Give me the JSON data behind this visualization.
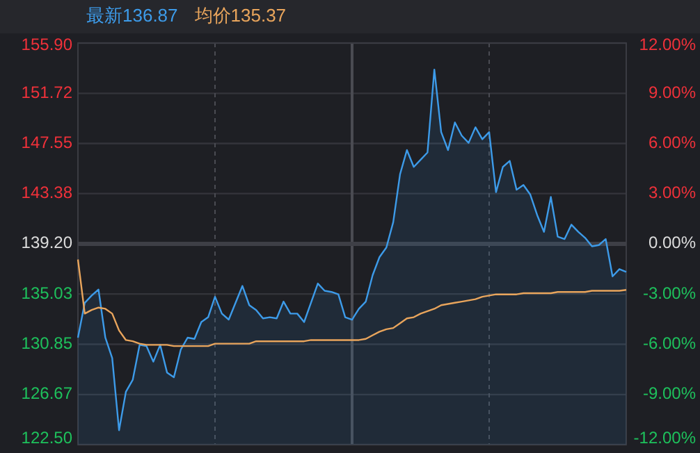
{
  "chart_data": {
    "type": "line",
    "categories": [
      null,
      null,
      null,
      null,
      null,
      null,
      null,
      null,
      null,
      null,
      null,
      null,
      null,
      null,
      null,
      null,
      null,
      null,
      null,
      null,
      null,
      null,
      null,
      null,
      null,
      null,
      null,
      null,
      null,
      null,
      null,
      null,
      null,
      null,
      null,
      null,
      null,
      null,
      null,
      null,
      null,
      null,
      null,
      null,
      null,
      null,
      null,
      null,
      null,
      null,
      null,
      null,
      null,
      null,
      null,
      null,
      null,
      null,
      null,
      null,
      null,
      null,
      null,
      null,
      null,
      null,
      null,
      null,
      null,
      null,
      null,
      null,
      null,
      null,
      null,
      null,
      null,
      null,
      null,
      null,
      null
    ],
    "series": [
      {
        "name": "最新136.87",
        "type": "area",
        "color": "#3d9be9",
        "values": [
          131.4,
          134.3,
          134.9,
          135.4,
          131.4,
          129.7,
          123.7,
          126.9,
          127.9,
          130.8,
          130.7,
          129.4,
          130.8,
          128.5,
          128.1,
          130.4,
          131.4,
          131.3,
          132.7,
          133.1,
          134.8,
          133.4,
          132.9,
          134.3,
          135.7,
          134.1,
          133.7,
          133.0,
          133.1,
          133.0,
          134.4,
          133.4,
          133.4,
          132.7,
          134.3,
          135.9,
          135.3,
          135.2,
          135.0,
          133.1,
          132.9,
          133.8,
          134.4,
          136.6,
          138.1,
          138.9,
          141.0,
          145.0,
          147.0,
          145.6,
          146.2,
          146.8,
          153.7,
          148.5,
          147.0,
          149.3,
          148.2,
          147.6,
          148.9,
          147.9,
          148.5,
          143.5,
          145.6,
          146.1,
          143.7,
          144.1,
          143.3,
          141.6,
          140.2,
          143.1,
          139.8,
          139.6,
          140.8,
          140.2,
          139.7,
          139.0,
          139.1,
          139.6,
          136.5,
          137.1,
          136.87
        ]
      },
      {
        "name": "均价135.37",
        "type": "line",
        "color": "#e9a55c",
        "values": [
          137.9,
          133.4,
          133.7,
          133.9,
          133.8,
          133.4,
          132.0,
          131.2,
          131.1,
          130.9,
          130.8,
          130.8,
          130.8,
          130.8,
          130.7,
          130.7,
          130.7,
          130.7,
          130.7,
          130.7,
          130.9,
          130.9,
          130.9,
          130.9,
          130.9,
          130.9,
          131.1,
          131.1,
          131.1,
          131.1,
          131.1,
          131.1,
          131.1,
          131.1,
          131.2,
          131.2,
          131.2,
          131.2,
          131.2,
          131.2,
          131.2,
          131.2,
          131.3,
          131.6,
          131.9,
          132.1,
          132.2,
          132.6,
          133.0,
          133.1,
          133.4,
          133.6,
          133.8,
          134.1,
          134.2,
          134.3,
          134.4,
          134.5,
          134.6,
          134.8,
          134.9,
          135.0,
          135.0,
          135.0,
          135.0,
          135.1,
          135.1,
          135.1,
          135.1,
          135.1,
          135.2,
          135.2,
          135.2,
          135.2,
          135.2,
          135.3,
          135.3,
          135.3,
          135.3,
          135.3,
          135.37
        ]
      }
    ],
    "ylim": [
      122.5,
      155.9
    ],
    "yticks": [
      {
        "value": 155.9,
        "label": "155.90"
      },
      {
        "value": 151.72,
        "label": "151.72"
      },
      {
        "value": 147.55,
        "label": "147.55"
      },
      {
        "value": 143.38,
        "label": "143.38"
      },
      {
        "value": 139.2,
        "label": "139.20"
      },
      {
        "value": 135.03,
        "label": "135.03"
      },
      {
        "value": 130.85,
        "label": "130.85"
      },
      {
        "value": 126.67,
        "label": "126.67"
      },
      {
        "value": 122.5,
        "label": "122.50"
      }
    ],
    "y2lim": [
      -12,
      12
    ],
    "y2ticks": [
      {
        "value": 12,
        "label": "12.00%"
      },
      {
        "value": 9,
        "label": "9.00%"
      },
      {
        "value": 6,
        "label": "6.00%"
      },
      {
        "value": 3,
        "label": "3.00%"
      },
      {
        "value": 0,
        "label": "0.00%"
      },
      {
        "value": -3,
        "label": "-3.00%"
      },
      {
        "value": -6,
        "label": "-6.00%"
      },
      {
        "value": -9,
        "label": "-9.00%"
      },
      {
        "value": -12,
        "label": "-12.00%"
      }
    ],
    "ref_lines": [
      {
        "axis": "y",
        "value": 139.2
      }
    ],
    "grid": true,
    "legend": "top left",
    "marker": "none"
  }
}
